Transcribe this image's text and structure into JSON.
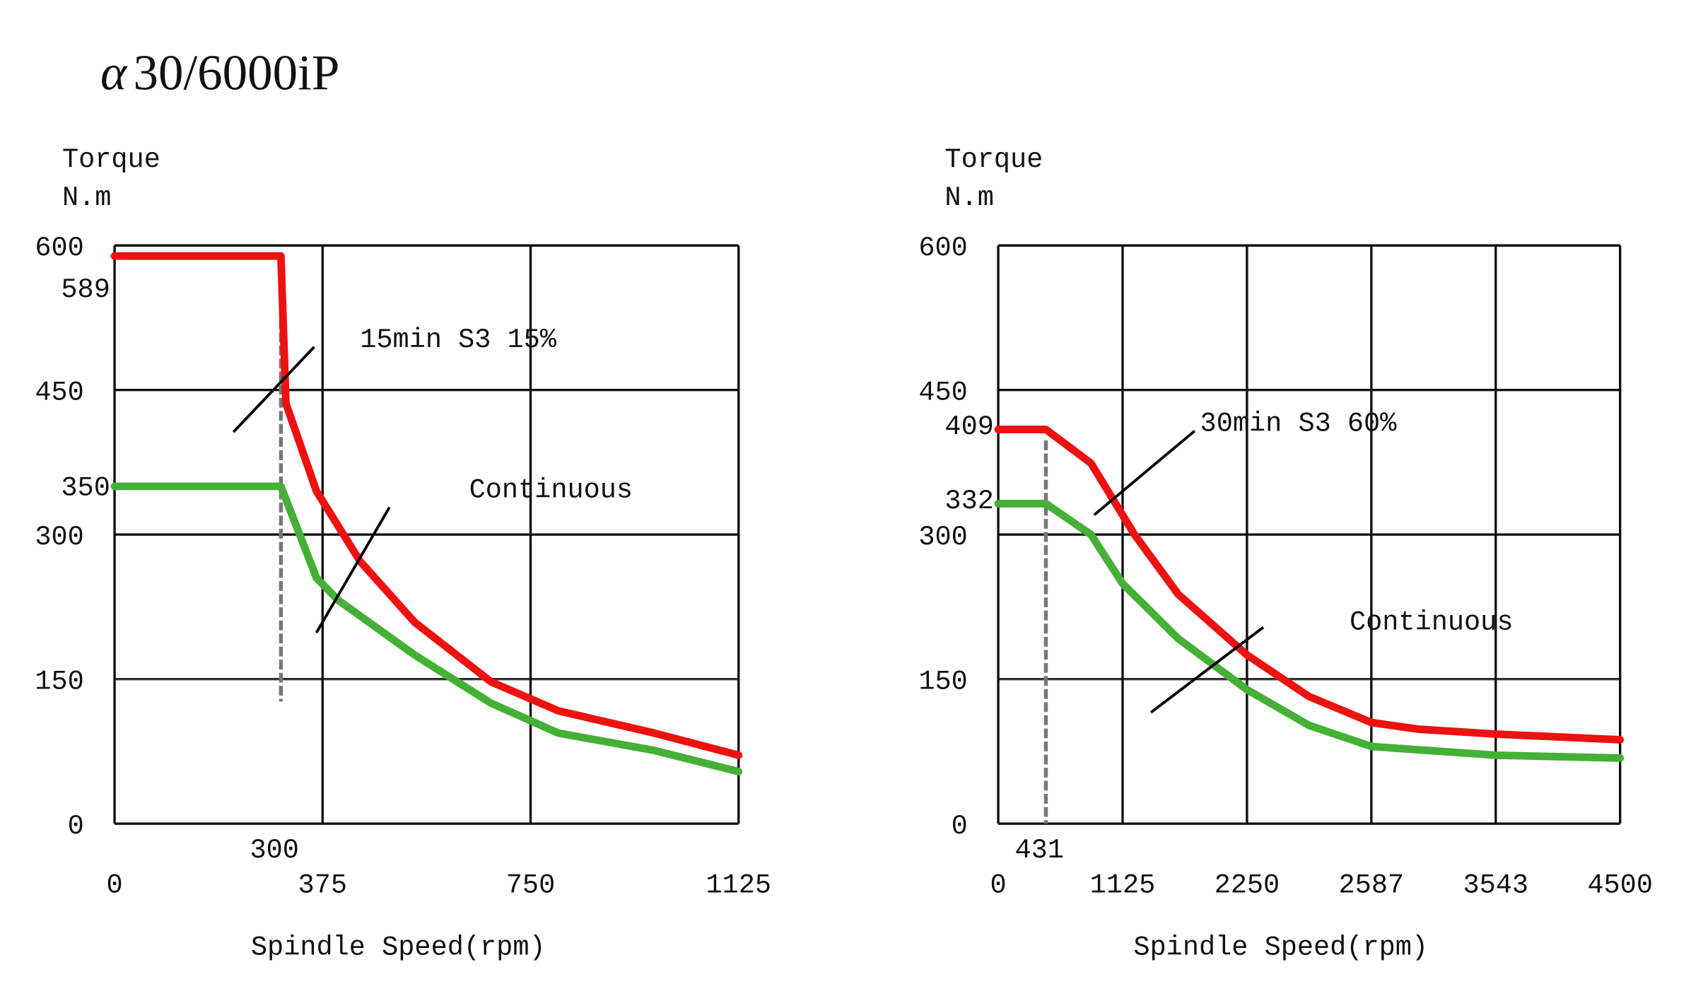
{
  "title_prefix": "α",
  "title_model": "30/6000iP",
  "colors": {
    "s3": "#ee1111",
    "continuous": "#44b035",
    "grid": "#111111"
  },
  "chart_data": [
    {
      "type": "line",
      "ylabel": "Torque",
      "yunit": "N.m",
      "xlabel": "Spindle Speed(rpm)",
      "ylim": [
        0,
        600
      ],
      "yticks": [
        0,
        150,
        300,
        450,
        600
      ],
      "xticks": [
        0,
        375,
        750,
        1125
      ],
      "extra_y_labels": [
        589,
        350
      ],
      "extra_x_label": 300,
      "knee_rpm": 300,
      "grid": true,
      "annotations": {
        "s3": "15min S3 15%",
        "continuous": "Continuous"
      },
      "series": [
        {
          "name": "15min S3 15%",
          "color_key": "s3",
          "points": [
            [
              0,
              589
            ],
            [
              300,
              589
            ],
            [
              309,
              436
            ],
            [
              364,
              345
            ],
            [
              443,
              272
            ],
            [
              541,
              209
            ],
            [
              679,
              147
            ],
            [
              800,
              117
            ],
            [
              973,
              94
            ],
            [
              1125,
              71
            ]
          ]
        },
        {
          "name": "Continuous",
          "color_key": "continuous",
          "points": [
            [
              0,
              350
            ],
            [
              300,
              350
            ],
            [
              364,
              255
            ],
            [
              403,
              232
            ],
            [
              541,
              175
            ],
            [
              679,
              125
            ],
            [
              800,
              94
            ],
            [
              973,
              76
            ],
            [
              1125,
              54
            ]
          ]
        }
      ]
    },
    {
      "type": "line",
      "ylabel": "Torque",
      "yunit": "N.m",
      "xlabel": "Spindle Speed(rpm)",
      "ylim": [
        0,
        600
      ],
      "yticks": [
        0,
        150,
        300,
        450,
        600
      ],
      "xticks": [
        0,
        1125,
        2250,
        2587,
        3543,
        4500
      ],
      "extra_y_labels": [
        409,
        332
      ],
      "extra_x_label": 431,
      "knee_rpm": 431,
      "grid": true,
      "annotations": {
        "s3": "30min S3 60%",
        "continuous": "Continuous"
      },
      "series": [
        {
          "name": "30min S3 60%",
          "color_key": "s3",
          "points": [
            [
              0,
              409
            ],
            [
              431,
              409
            ],
            [
              839,
              374
            ],
            [
              1233,
              300
            ],
            [
              1628,
              238
            ],
            [
              2250,
              175
            ],
            [
              2418,
              132
            ],
            [
              2587,
              105
            ],
            [
              2948,
              98
            ],
            [
              3543,
              93
            ],
            [
              4500,
              87
            ]
          ]
        },
        {
          "name": "Continuous",
          "color_key": "continuous",
          "points": [
            [
              0,
              332
            ],
            [
              431,
              332
            ],
            [
              839,
              300
            ],
            [
              1125,
              249
            ],
            [
              1628,
              192
            ],
            [
              2250,
              139
            ],
            [
              2418,
              102
            ],
            [
              2587,
              80
            ],
            [
              3543,
              71
            ],
            [
              4500,
              68
            ]
          ]
        }
      ]
    }
  ]
}
